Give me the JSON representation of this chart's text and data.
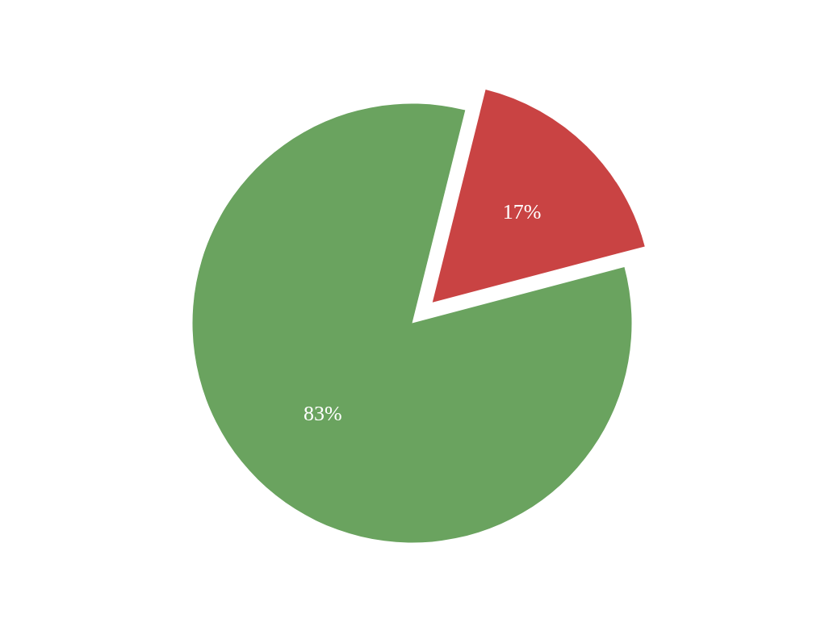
{
  "chart_data": {
    "type": "pie",
    "categories": [
      null,
      null
    ],
    "values": [
      83,
      17
    ],
    "colors": [
      "#6aa35f",
      "#c94343"
    ],
    "value_labels": [
      "83%",
      "17%"
    ]
  }
}
